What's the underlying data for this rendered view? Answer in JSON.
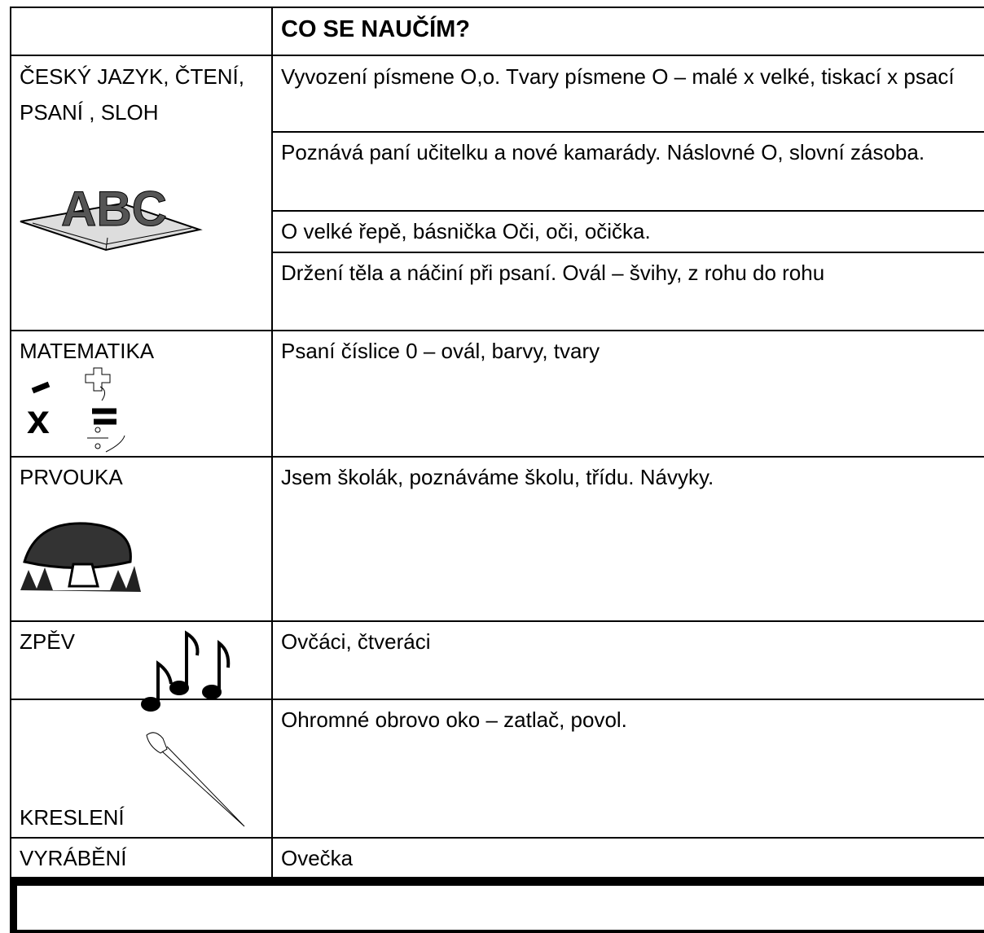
{
  "header": {
    "title": "CO SE NAUČÍM?"
  },
  "rows": [
    {
      "subject": "ČESKÝ JAZYK, ČTENÍ, PSANÍ , SLOH",
      "items": [
        "Vyvození písmene O,o. Tvary písmene O – malé x velké, tiskací x psací",
        "Poznává paní učitelku a nové kamarády. Náslovné O, slovní zásoba.",
        "O velké řepě, básnička Oči, oči, očička.",
        "Držení těla a náčiní při psaní. Ovál – švihy, z rohu do rohu"
      ]
    },
    {
      "subject": "MATEMATIKA",
      "items": [
        "Psaní číslice 0 – ovál, barvy, tvary"
      ]
    },
    {
      "subject": "PRVOUKA",
      "items": [
        "Jsem školák, poznáváme školu, třídu. Návyky."
      ]
    },
    {
      "subject": "ZPĚV",
      "items": [
        "Ovčáci, čtveráci"
      ]
    },
    {
      "subject": "KRESLENÍ",
      "items": [
        "Ohromné obrovo oko – zatlač, povol."
      ]
    },
    {
      "subject": "VYRÁBĚNÍ",
      "items": [
        "Ovečka"
      ]
    }
  ]
}
